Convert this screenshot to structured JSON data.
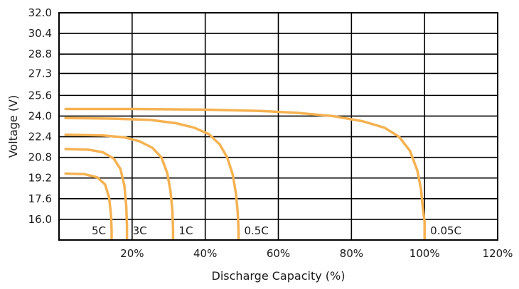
{
  "chart_data": {
    "type": "line",
    "xlabel": "Discharge Capacity (%)",
    "ylabel": "Voltage (V)",
    "xlim": [
      0,
      120
    ],
    "ylim": [
      14.4,
      32.0
    ],
    "grid": true,
    "line_color": "#f5b252",
    "x_ticks": [
      {
        "value": 20,
        "label": "20%"
      },
      {
        "value": 40,
        "label": "40%"
      },
      {
        "value": 60,
        "label": "60%"
      },
      {
        "value": 80,
        "label": "80%"
      },
      {
        "value": 100,
        "label": "100%"
      },
      {
        "value": 120,
        "label": "120%"
      }
    ],
    "y_ticks": [
      {
        "value": 32.0,
        "label": "32.0"
      },
      {
        "value": 30.4,
        "label": "30.4"
      },
      {
        "value": 28.8,
        "label": "28.8"
      },
      {
        "value": 27.3,
        "label": "27.3"
      },
      {
        "value": 25.6,
        "label": "25.6"
      },
      {
        "value": 24.0,
        "label": "24.0"
      },
      {
        "value": 22.4,
        "label": "22.4"
      },
      {
        "value": 20.8,
        "label": "20.8"
      },
      {
        "value": 19.2,
        "label": "19.2"
      },
      {
        "value": 17.6,
        "label": "17.6"
      },
      {
        "value": 16.0,
        "label": "16.0"
      }
    ],
    "series": [
      {
        "name": "0.05C",
        "x": [
          1.5,
          20,
          40,
          55,
          65,
          75,
          83,
          89,
          93,
          96,
          98,
          99,
          99.5,
          100,
          100
        ],
        "y": [
          24.55,
          24.55,
          24.5,
          24.4,
          24.25,
          24.0,
          23.6,
          23.1,
          22.4,
          21.3,
          19.8,
          18.4,
          17.0,
          15.8,
          14.4
        ]
      },
      {
        "name": "0.5C",
        "x": [
          1.5,
          15,
          25,
          32,
          37,
          41,
          44,
          46,
          47.5,
          48.4,
          48.9,
          49.1,
          49.1
        ],
        "y": [
          23.85,
          23.8,
          23.7,
          23.45,
          23.1,
          22.6,
          21.8,
          20.8,
          19.5,
          18.0,
          16.5,
          15.2,
          14.4
        ]
      },
      {
        "name": "1C",
        "x": [
          1.5,
          12,
          18,
          22,
          25.5,
          28,
          29.6,
          30.5,
          31.0,
          31.2,
          31.2
        ],
        "y": [
          22.55,
          22.5,
          22.35,
          22.05,
          21.55,
          20.8,
          19.6,
          18.2,
          16.7,
          15.3,
          14.4
        ]
      },
      {
        "name": "3C",
        "x": [
          1.5,
          8,
          12,
          15,
          16.8,
          17.9,
          18.4,
          18.6,
          18.6
        ],
        "y": [
          21.45,
          21.4,
          21.2,
          20.7,
          19.9,
          18.6,
          17.0,
          15.5,
          14.4
        ]
      },
      {
        "name": "5C",
        "x": [
          1.5,
          7,
          10.5,
          12.6,
          13.7,
          14.2,
          14.4,
          14.4
        ],
        "y": [
          19.55,
          19.5,
          19.25,
          18.7,
          17.7,
          16.4,
          15.2,
          14.4
        ]
      }
    ]
  }
}
